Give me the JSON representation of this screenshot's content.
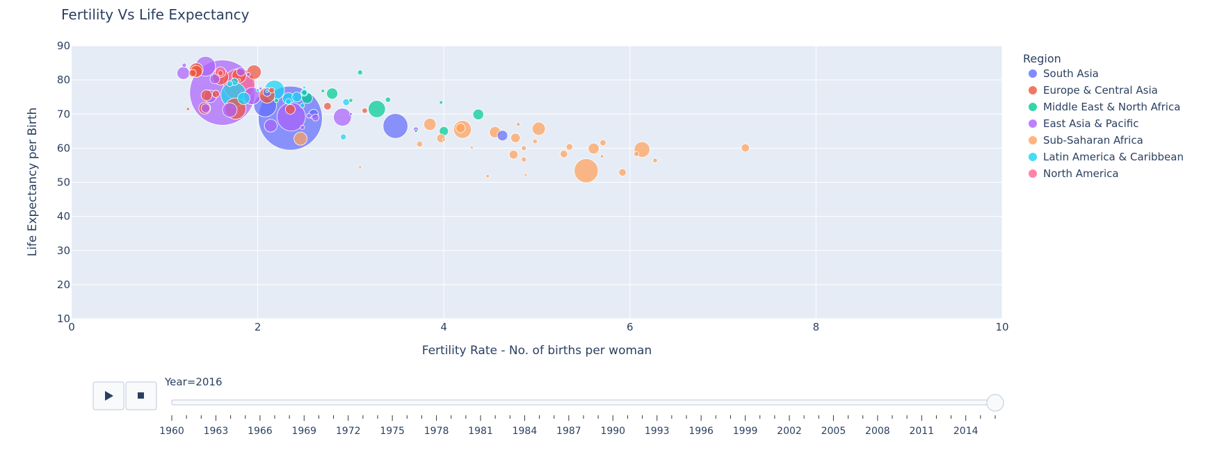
{
  "chart_data": {
    "type": "scatter",
    "title": "Fertility Vs Life Expectancy",
    "xlabel": "Fertility Rate - No. of births per woman",
    "ylabel": "Life Expectancy per Birth",
    "xlim": [
      0,
      10
    ],
    "ylim": [
      10,
      90
    ],
    "x_ticks": [
      0,
      2,
      4,
      6,
      8,
      10
    ],
    "y_ticks": [
      10,
      20,
      30,
      40,
      50,
      60,
      70,
      80,
      90
    ],
    "grid": true,
    "legend": {
      "title": "Region",
      "placement": "right"
    },
    "bubble_size_encoding": "population",
    "series": [
      {
        "name": "South Asia",
        "color": "#636efa",
        "points": [
          {
            "x": 2.35,
            "y": 68.8,
            "size": 1324
          },
          {
            "x": 3.48,
            "y": 66.5,
            "size": 198
          },
          {
            "x": 2.08,
            "y": 72.5,
            "size": 165
          },
          {
            "x": 2.1,
            "y": 76.4,
            "size": 21
          },
          {
            "x": 2.6,
            "y": 70.0,
            "size": 29
          },
          {
            "x": 4.63,
            "y": 63.7,
            "size": 35
          },
          {
            "x": 2.03,
            "y": 77.5,
            "size": 0.4
          },
          {
            "x": 3.0,
            "y": 70.0,
            "size": 0.8
          }
        ]
      },
      {
        "name": "Europe & Central Asia",
        "color": "#ef553b",
        "points": [
          {
            "x": 1.96,
            "y": 82.3,
            "size": 66
          },
          {
            "x": 1.6,
            "y": 80.9,
            "size": 82
          },
          {
            "x": 1.8,
            "y": 81.2,
            "size": 65
          },
          {
            "x": 1.34,
            "y": 82.5,
            "size": 46
          },
          {
            "x": 1.34,
            "y": 83.0,
            "size": 60
          },
          {
            "x": 1.3,
            "y": 82.0,
            "size": 17
          },
          {
            "x": 1.76,
            "y": 71.6,
            "size": 144
          },
          {
            "x": 2.1,
            "y": 75.5,
            "size": 79
          },
          {
            "x": 1.55,
            "y": 75.9,
            "size": 17
          },
          {
            "x": 1.43,
            "y": 71.7,
            "size": 45
          },
          {
            "x": 2.75,
            "y": 72.3,
            "size": 18
          },
          {
            "x": 2.35,
            "y": 71.4,
            "size": 31
          },
          {
            "x": 2.15,
            "y": 77.0,
            "size": 10
          },
          {
            "x": 1.45,
            "y": 75.5,
            "size": 38
          },
          {
            "x": 1.25,
            "y": 71.5,
            "size": 3
          },
          {
            "x": 3.15,
            "y": 71.0,
            "size": 9
          },
          {
            "x": 1.6,
            "y": 82.0,
            "size": 9
          }
        ]
      },
      {
        "name": "Middle East & North Africa",
        "color": "#00cc96",
        "points": [
          {
            "x": 3.28,
            "y": 71.5,
            "size": 95
          },
          {
            "x": 2.8,
            "y": 76.0,
            "size": 40
          },
          {
            "x": 2.53,
            "y": 74.7,
            "size": 38
          },
          {
            "x": 4.37,
            "y": 69.9,
            "size": 37
          },
          {
            "x": 3.0,
            "y": 74.0,
            "size": 5
          },
          {
            "x": 2.5,
            "y": 76.3,
            "size": 9
          },
          {
            "x": 3.4,
            "y": 74.2,
            "size": 9
          },
          {
            "x": 3.1,
            "y": 82.2,
            "size": 8
          },
          {
            "x": 4.0,
            "y": 65.0,
            "size": 27
          },
          {
            "x": 3.97,
            "y": 73.4,
            "size": 4
          },
          {
            "x": 2.7,
            "y": 76.8,
            "size": 4
          },
          {
            "x": 2.2,
            "y": 74.0,
            "size": 6
          },
          {
            "x": 3.7,
            "y": 65.0,
            "size": 0.6
          }
        ]
      },
      {
        "name": "East Asia & Pacific",
        "color": "#ab63fa",
        "points": [
          {
            "x": 1.62,
            "y": 76.3,
            "size": 1379
          },
          {
            "x": 2.36,
            "y": 69.2,
            "size": 261
          },
          {
            "x": 1.44,
            "y": 84.0,
            "size": 127
          },
          {
            "x": 1.49,
            "y": 75.2,
            "size": 51
          },
          {
            "x": 2.91,
            "y": 69.1,
            "size": 103
          },
          {
            "x": 1.7,
            "y": 71.2,
            "size": 68
          },
          {
            "x": 2.14,
            "y": 66.6,
            "size": 53
          },
          {
            "x": 1.2,
            "y": 82.0,
            "size": 51
          },
          {
            "x": 1.54,
            "y": 80.3,
            "size": 31
          },
          {
            "x": 1.82,
            "y": 82.4,
            "size": 24
          },
          {
            "x": 1.94,
            "y": 75.3,
            "size": 95
          },
          {
            "x": 2.48,
            "y": 66.1,
            "size": 6
          },
          {
            "x": 3.7,
            "y": 65.5,
            "size": 8
          },
          {
            "x": 1.21,
            "y": 84.3,
            "size": 6
          },
          {
            "x": 1.44,
            "y": 71.7,
            "size": 25
          },
          {
            "x": 2.62,
            "y": 69.0,
            "size": 16
          },
          {
            "x": 2.55,
            "y": 69.5,
            "size": 7
          },
          {
            "x": 1.9,
            "y": 81.6,
            "size": 5
          }
        ]
      },
      {
        "name": "Sub-Saharan Africa",
        "color": "#ffa15a",
        "points": [
          {
            "x": 5.53,
            "y": 53.4,
            "size": 186
          },
          {
            "x": 4.2,
            "y": 65.5,
            "size": 102
          },
          {
            "x": 6.13,
            "y": 59.6,
            "size": 79
          },
          {
            "x": 2.46,
            "y": 62.8,
            "size": 56
          },
          {
            "x": 5.02,
            "y": 65.7,
            "size": 56
          },
          {
            "x": 3.85,
            "y": 67.0,
            "size": 48
          },
          {
            "x": 4.55,
            "y": 64.7,
            "size": 41
          },
          {
            "x": 5.61,
            "y": 59.9,
            "size": 38
          },
          {
            "x": 4.18,
            "y": 65.9,
            "size": 28
          },
          {
            "x": 4.77,
            "y": 63.0,
            "size": 29
          },
          {
            "x": 4.75,
            "y": 58.1,
            "size": 25
          },
          {
            "x": 3.97,
            "y": 62.9,
            "size": 24
          },
          {
            "x": 4.8,
            "y": 67.0,
            "size": 5
          },
          {
            "x": 5.29,
            "y": 58.3,
            "size": 18
          },
          {
            "x": 6.07,
            "y": 58.3,
            "size": 8
          },
          {
            "x": 7.24,
            "y": 60.1,
            "size": 21
          },
          {
            "x": 5.92,
            "y": 52.9,
            "size": 18
          },
          {
            "x": 5.71,
            "y": 61.6,
            "size": 12
          },
          {
            "x": 3.74,
            "y": 61.2,
            "size": 11
          },
          {
            "x": 4.86,
            "y": 60.0,
            "size": 8
          },
          {
            "x": 5.35,
            "y": 60.4,
            "size": 14
          },
          {
            "x": 6.27,
            "y": 56.4,
            "size": 7
          },
          {
            "x": 4.86,
            "y": 56.7,
            "size": 8
          },
          {
            "x": 4.98,
            "y": 62.0,
            "size": 7
          },
          {
            "x": 4.0,
            "y": 62.5,
            "size": 2
          },
          {
            "x": 4.47,
            "y": 51.8,
            "size": 4
          },
          {
            "x": 4.88,
            "y": 52.2,
            "size": 1
          },
          {
            "x": 5.7,
            "y": 57.6,
            "size": 4
          },
          {
            "x": 4.3,
            "y": 60.2,
            "size": 2
          },
          {
            "x": 3.1,
            "y": 54.5,
            "size": 0.5
          }
        ]
      },
      {
        "name": "Latin America & Caribbean",
        "color": "#19d3f3",
        "points": [
          {
            "x": 1.74,
            "y": 75.7,
            "size": 208
          },
          {
            "x": 2.18,
            "y": 77.0,
            "size": 127
          },
          {
            "x": 2.33,
            "y": 74.6,
            "size": 43
          },
          {
            "x": 1.85,
            "y": 74.6,
            "size": 49
          },
          {
            "x": 2.42,
            "y": 75.0,
            "size": 31
          },
          {
            "x": 1.75,
            "y": 79.5,
            "size": 18
          },
          {
            "x": 2.95,
            "y": 73.5,
            "size": 15
          },
          {
            "x": 2.5,
            "y": 76.3,
            "size": 16
          },
          {
            "x": 2.92,
            "y": 63.3,
            "size": 11
          },
          {
            "x": 2.33,
            "y": 73.7,
            "size": 11
          },
          {
            "x": 2.48,
            "y": 72.5,
            "size": 7
          },
          {
            "x": 1.7,
            "y": 78.9,
            "size": 11
          },
          {
            "x": 2.0,
            "y": 77.0,
            "size": 3
          },
          {
            "x": 2.5,
            "y": 77.8,
            "size": 2
          },
          {
            "x": 2.1,
            "y": 76.7,
            "size": 1
          }
        ]
      },
      {
        "name": "North America",
        "color": "#ff6692",
        "points": [
          {
            "x": 1.8,
            "y": 78.7,
            "size": 323
          },
          {
            "x": 1.6,
            "y": 82.3,
            "size": 36
          },
          {
            "x": 1.8,
            "y": 80.0,
            "size": 2
          }
        ]
      }
    ]
  },
  "slider": {
    "prefix": "Year=",
    "current": "2016",
    "current_fraction": 1.0,
    "labels": [
      "1960",
      "1963",
      "1966",
      "1969",
      "1972",
      "1975",
      "1978",
      "1981",
      "1984",
      "1987",
      "1990",
      "1993",
      "1996",
      "1999",
      "2002",
      "2005",
      "2008",
      "2011",
      "2014"
    ],
    "first_year": 1960,
    "last_year": 2016
  },
  "controls": {
    "play_icon": "play-icon",
    "stop_icon": "stop-icon"
  }
}
